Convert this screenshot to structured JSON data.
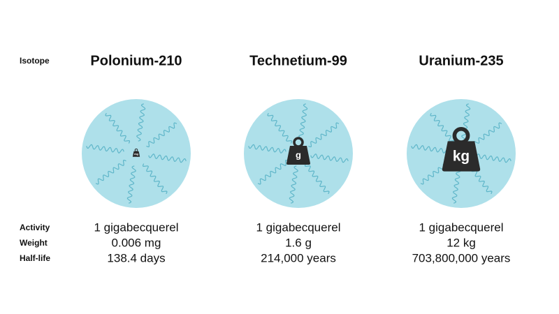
{
  "row_labels": {
    "isotope": "Isotope",
    "activity": "Activity",
    "weight": "Weight",
    "half_life": "Half-life"
  },
  "columns": [
    {
      "name": "Polonium-210",
      "unit": "mg",
      "activity": "1 gigabecquerel",
      "weight": "0.006 mg",
      "half_life": "138.4 days"
    },
    {
      "name": "Technetium-99",
      "unit": "g",
      "activity": "1 gigabecquerel",
      "weight": "1.6 g",
      "half_life": "214,000 years"
    },
    {
      "name": "Uranium-235",
      "unit": "kg",
      "activity": "1 gigabecquerel",
      "weight": "12 kg",
      "half_life": "703,800,000 years"
    }
  ]
}
